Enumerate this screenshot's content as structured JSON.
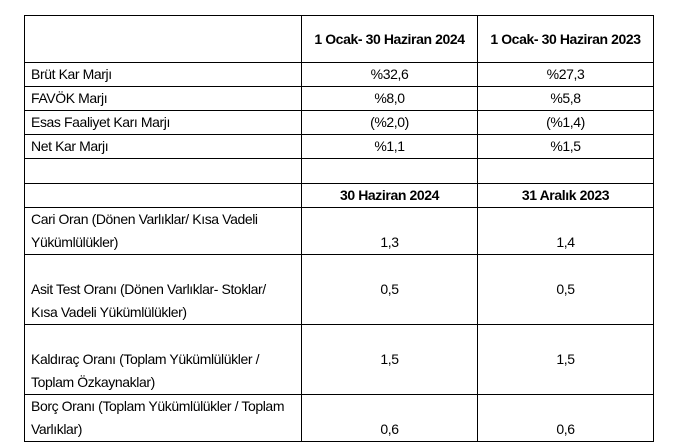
{
  "header1": {
    "col2": "1 Ocak- 30 Haziran 2024",
    "col3": "1 Ocak- 30 Haziran 2023"
  },
  "margins": [
    {
      "label": "Brüt Kar Marjı",
      "v2024": "%32,6",
      "v2023": "%27,3"
    },
    {
      "label": "FAVÖK Marjı",
      "v2024": "%8,0",
      "v2023": "%5,8"
    },
    {
      "label": "Esas Faaliyet Karı Marjı",
      "v2024": "(%2,0)",
      "v2023": "(%1,4)"
    },
    {
      "label": "Net Kar Marjı",
      "v2024": "%1,1",
      "v2023": "%1,5"
    }
  ],
  "header2": {
    "col2": "30 Haziran 2024",
    "col3": "31 Aralık 2023"
  },
  "ratios": [
    {
      "label": "Cari Oran (Dönen Varlıklar/ Kısa Vadeli Yükümlülükler)",
      "v2024": "1,3",
      "v2023": "1,4"
    },
    {
      "label": "Asit Test Oranı (Dönen Varlıklar- Stoklar/ Kısa Vadeli Yükümlülükler)",
      "v2024": "0,5",
      "v2023": "0,5"
    },
    {
      "label": "Kaldıraç Oranı (Toplam Yükümlülükler / Toplam Özkaynaklar)",
      "v2024": "1,5",
      "v2023": "1,5"
    },
    {
      "label": "Borç Oranı (Toplam Yükümlülükler / Toplam Varlıklar)",
      "v2024": "0,6",
      "v2023": "0,6"
    }
  ]
}
